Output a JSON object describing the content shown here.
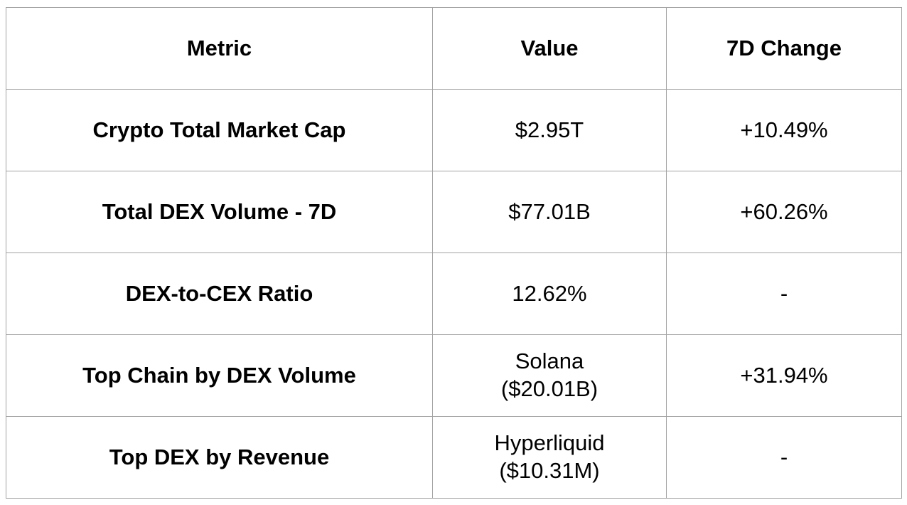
{
  "chart_data": {
    "type": "table",
    "columns": [
      "Metric",
      "Value",
      "7D Change"
    ],
    "rows": [
      [
        "Crypto Total Market Cap",
        "$2.95T",
        "+10.49%"
      ],
      [
        "Total DEX Volume - 7D",
        "$77.01B",
        "+60.26%"
      ],
      [
        "DEX-to-CEX Ratio",
        "12.62%",
        "-"
      ],
      [
        "Top Chain by DEX Volume",
        "Solana\n($20.01B)",
        "+31.94%"
      ],
      [
        "Top DEX by Revenue",
        "Hyperliquid\n($10.31M)",
        "-"
      ]
    ],
    "layout": {
      "grid": true,
      "header_bold": true,
      "first_column_bold": true,
      "text_align": "center"
    },
    "colors": {
      "border": "#a2a2a2",
      "text": "#000000",
      "background": "#ffffff"
    }
  }
}
